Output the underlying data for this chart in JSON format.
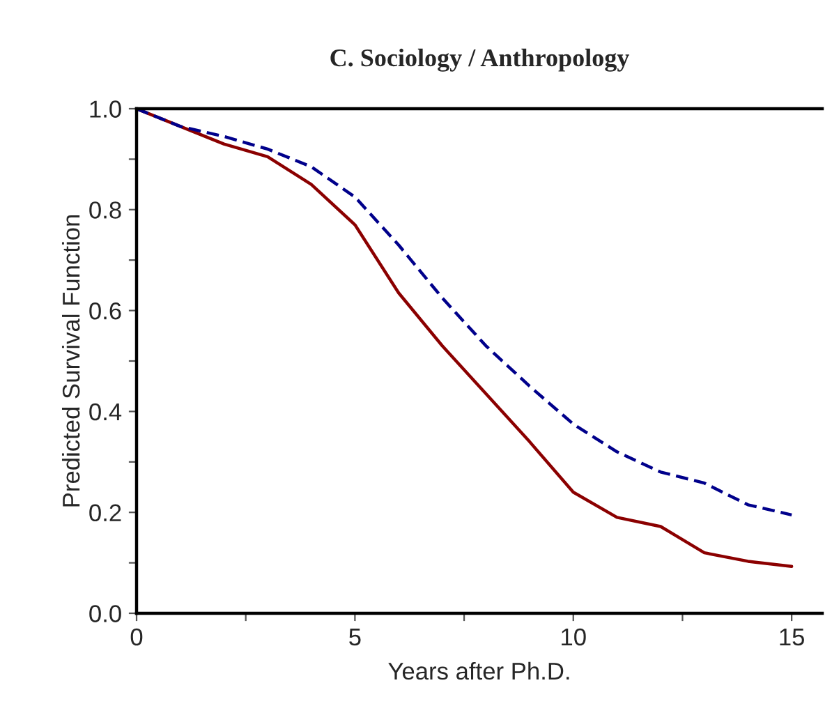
{
  "chart_data": {
    "type": "line",
    "title": "C. Sociology / Anthropology",
    "xlabel": "Years after Ph.D.",
    "ylabel": "Predicted Survival Function",
    "x": [
      0,
      1,
      2,
      3,
      4,
      5,
      6,
      7,
      8,
      9,
      10,
      11,
      12,
      13,
      14,
      15
    ],
    "series": [
      {
        "color": "#8b0000",
        "line_style": "solid",
        "values": [
          1.0,
          0.965,
          0.93,
          0.905,
          0.85,
          0.77,
          0.635,
          0.53,
          0.435,
          0.34,
          0.24,
          0.19,
          0.172,
          0.12,
          0.103,
          0.093
        ]
      },
      {
        "color": "#00008b",
        "line_style": "dashed",
        "values": [
          1.0,
          0.965,
          0.945,
          0.92,
          0.885,
          0.825,
          0.73,
          0.625,
          0.53,
          0.45,
          0.375,
          0.32,
          0.28,
          0.258,
          0.215,
          0.195
        ]
      }
    ],
    "xlim": [
      0,
      15.7
    ],
    "xticks": [
      0,
      {
        "value": 2.5,
        "label": null
      },
      5,
      {
        "value": 7.5,
        "label": null
      },
      10,
      {
        "value": 12.5,
        "label": null
      },
      15
    ],
    "ylim": [
      0,
      1.0
    ],
    "yticks": [
      "0.0",
      {
        "value": 0.1,
        "label": null
      },
      {
        "value": 0.2,
        "label": "0.2"
      },
      {
        "value": 0.3,
        "label": null
      },
      {
        "value": 0.4,
        "label": "0.4"
      },
      {
        "value": 0.5,
        "label": null
      },
      {
        "value": 0.6,
        "label": "0.6"
      },
      {
        "value": 0.7,
        "label": null
      },
      {
        "value": 0.8,
        "label": "0.8"
      },
      {
        "value": 0.9,
        "label": null
      },
      {
        "value": 1.0,
        "label": "1.0"
      }
    ],
    "grid": false,
    "legend": false
  }
}
